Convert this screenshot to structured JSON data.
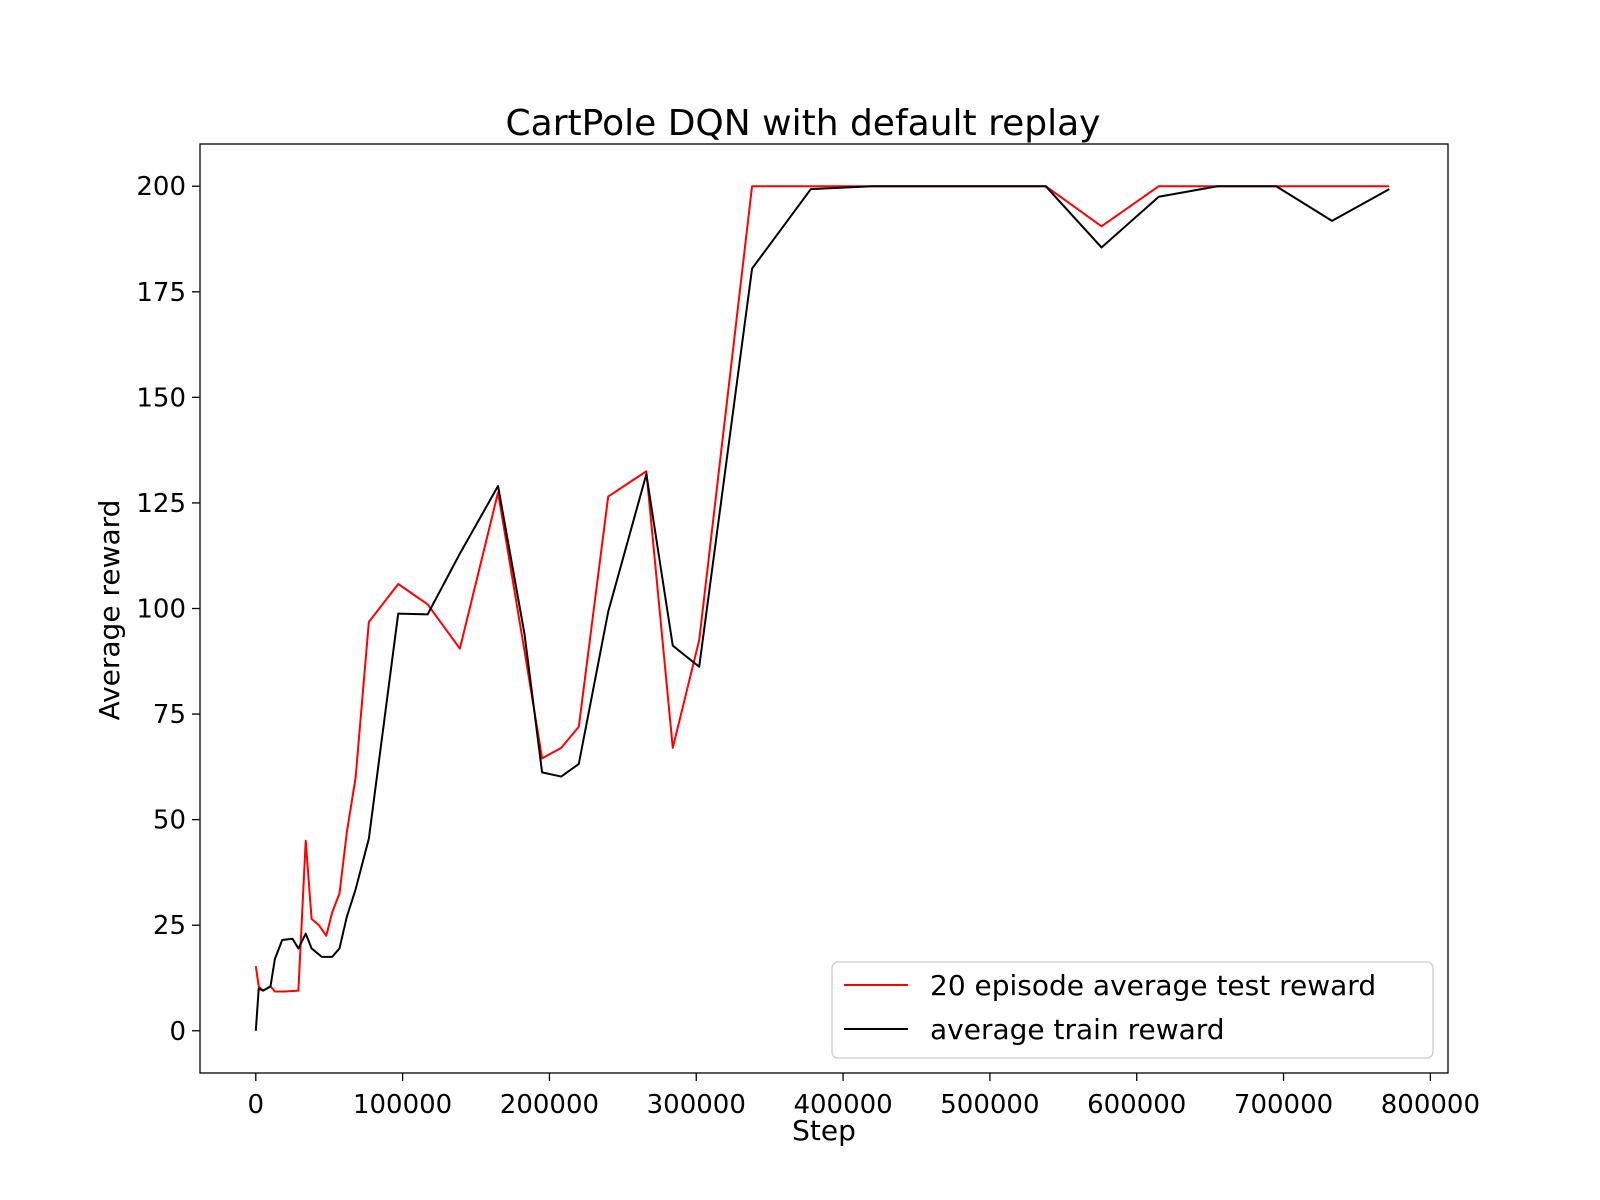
{
  "chart_data": {
    "type": "line",
    "title": "CartPole DQN with default replay",
    "xlabel": "Step",
    "ylabel": "Average reward",
    "xlim": [
      -38000,
      812000
    ],
    "ylim": [
      -10,
      210
    ],
    "xticks": [
      0,
      100000,
      200000,
      300000,
      400000,
      500000,
      600000,
      700000,
      800000
    ],
    "xtick_labels": [
      "0",
      "100000",
      "200000",
      "300000",
      "400000",
      "500000",
      "600000",
      "700000",
      "800000"
    ],
    "yticks": [
      0,
      25,
      50,
      75,
      100,
      125,
      150,
      175,
      200
    ],
    "ytick_labels": [
      "0",
      "25",
      "50",
      "75",
      "100",
      "125",
      "150",
      "175",
      "200"
    ],
    "grid": false,
    "legend_position": "bottom-right",
    "series": [
      {
        "name": "20 episode average test reward",
        "color": "#ff0000",
        "x": [
          0,
          2000,
          5000,
          10000,
          13000,
          20000,
          29000,
          34000,
          38000,
          43000,
          48000,
          52000,
          57000,
          62000,
          68000,
          77000,
          97000,
          117000,
          139000,
          165000,
          183000,
          195000,
          208000,
          220000,
          240000,
          266000,
          284000,
          302000,
          338000,
          378000,
          420000,
          500000,
          538000,
          576000,
          615000,
          655000,
          695000,
          733000,
          772000
        ],
        "y": [
          15.3,
          10.5,
          9.5,
          10.5,
          9.3,
          9.3,
          9.5,
          45,
          26.5,
          25,
          22.5,
          28,
          32.5,
          47,
          60,
          96.8,
          105.8,
          101,
          90.5,
          127.5,
          90,
          64.5,
          67,
          72,
          126.5,
          132.5,
          67,
          92.5,
          200,
          200,
          200,
          200,
          200,
          190.5,
          200,
          200,
          200,
          200,
          200
        ]
      },
      {
        "name": "average train reward",
        "color": "#000000",
        "x": [
          0,
          2000,
          5000,
          10000,
          13000,
          18000,
          25000,
          29000,
          34000,
          38000,
          45000,
          52000,
          57000,
          62000,
          68000,
          77000,
          97000,
          117000,
          139000,
          165000,
          183000,
          195000,
          208000,
          220000,
          240000,
          266000,
          284000,
          302000,
          338000,
          378000,
          420000,
          500000,
          538000,
          576000,
          615000,
          655000,
          695000,
          733000,
          772000
        ],
        "y": [
          0,
          10,
          9.5,
          10.5,
          17,
          21.5,
          21.8,
          19.5,
          23,
          19.5,
          17.5,
          17.5,
          19.5,
          27,
          33.5,
          45.5,
          98.8,
          98.6,
          113,
          129,
          94,
          61.2,
          60.2,
          63.2,
          99.2,
          131.8,
          91.2,
          86.2,
          180.5,
          199.3,
          200,
          200,
          200,
          185.5,
          197.5,
          200,
          200,
          191.8,
          199.3
        ]
      }
    ]
  }
}
